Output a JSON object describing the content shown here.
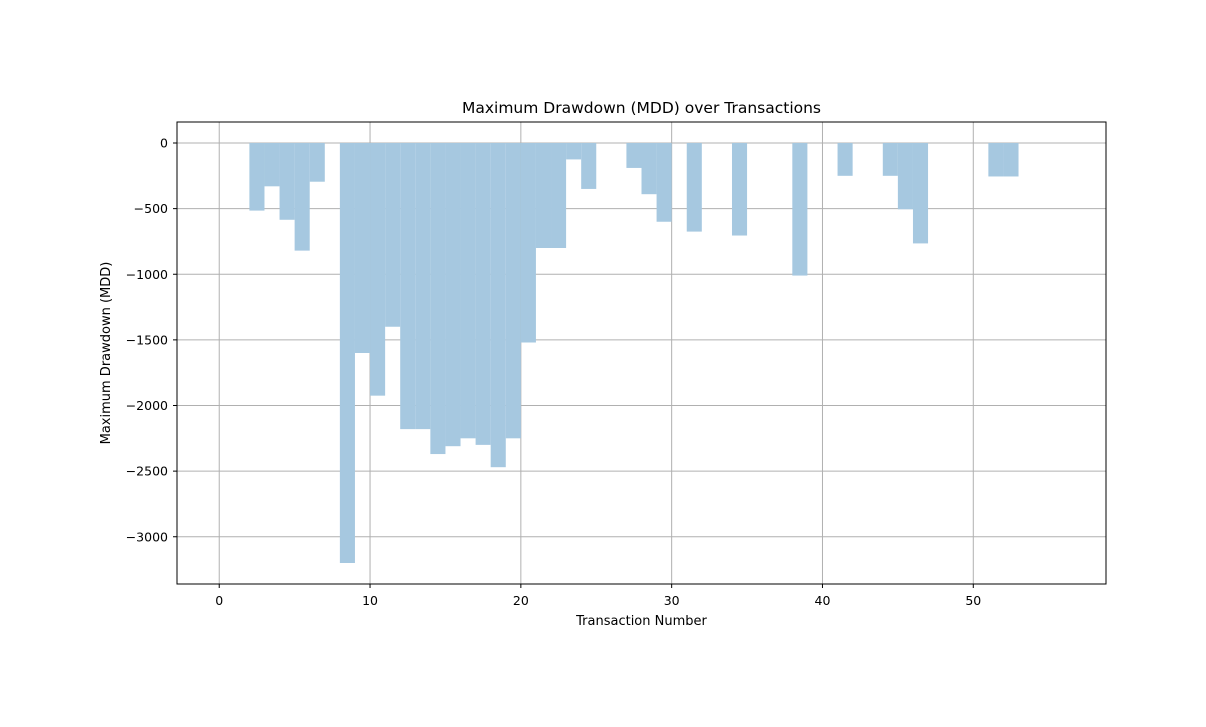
{
  "chart_data": {
    "type": "bar",
    "title": "Maximum Drawdown (MDD) over Transactions",
    "xlabel": "Transaction Number",
    "ylabel": "Maximum Drawdown (MDD)",
    "xlim": [
      -2.8,
      58.8
    ],
    "ylim": [
      -3360,
      160
    ],
    "xticks": [
      0,
      10,
      20,
      30,
      40,
      50
    ],
    "yticks": [
      0,
      -500,
      -1000,
      -1500,
      -2000,
      -2500,
      -3000
    ],
    "grid": true,
    "bar_color": "#a6c8e0",
    "bar_width": 1,
    "x": [
      0,
      1,
      2,
      3,
      4,
      5,
      6,
      7,
      8,
      9,
      10,
      11,
      12,
      13,
      14,
      15,
      16,
      17,
      18,
      19,
      20,
      21,
      22,
      23,
      24,
      25,
      26,
      27,
      28,
      29,
      30,
      31,
      32,
      33,
      34,
      35,
      36,
      37,
      38,
      39,
      40,
      41,
      42,
      43,
      44,
      45,
      46,
      47,
      48,
      49,
      50,
      51,
      52,
      53,
      54,
      55,
      56
    ],
    "values": [
      0,
      0,
      -515,
      -330,
      -585,
      -820,
      -295,
      0,
      -3200,
      -1600,
      -1925,
      -1400,
      -2180,
      -2180,
      -2370,
      -2310,
      -2250,
      -2300,
      -2470,
      -2250,
      -1520,
      -800,
      -800,
      -125,
      -350,
      0,
      0,
      -190,
      -390,
      -600,
      0,
      -675,
      0,
      0,
      -705,
      0,
      0,
      0,
      -1010,
      0,
      0,
      -250,
      0,
      0,
      -250,
      -505,
      -765,
      0,
      0,
      0,
      0,
      -255,
      -255,
      0,
      0,
      0,
      0
    ]
  }
}
